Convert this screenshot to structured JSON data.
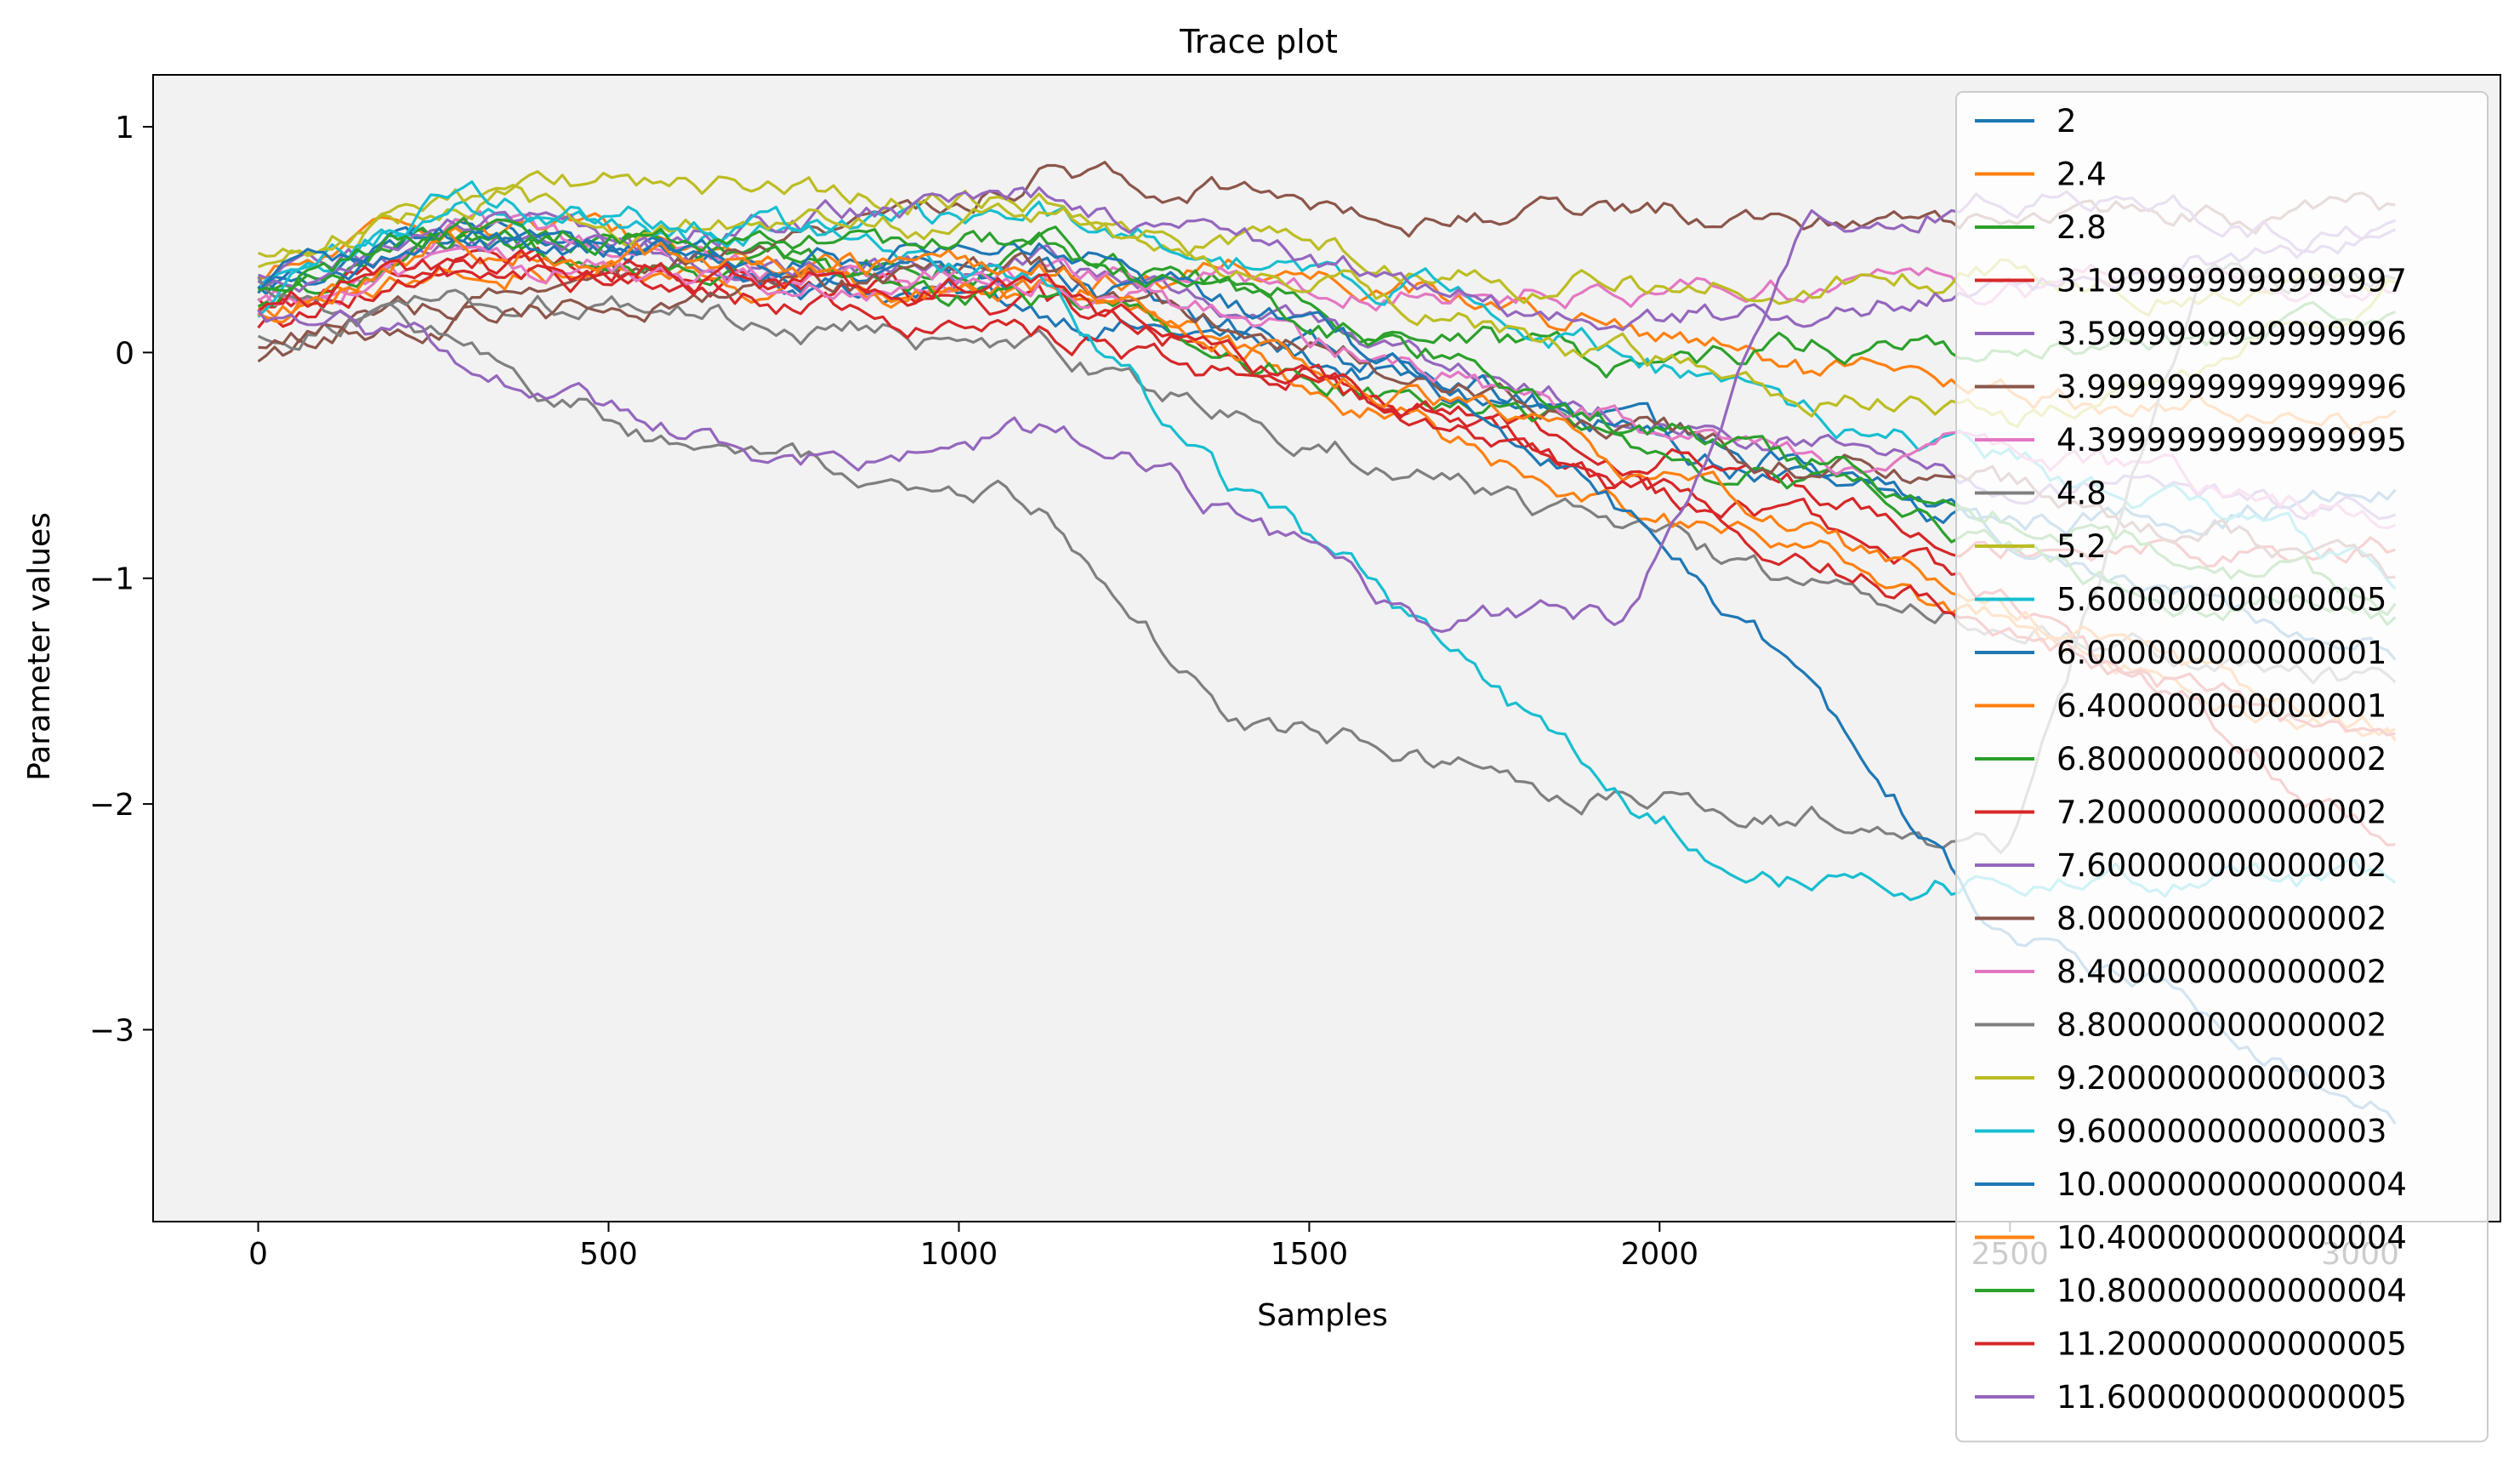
{
  "chart_data": {
    "type": "line",
    "title": "Trace plot",
    "xlabel": "Samples",
    "ylabel": "Parameter values",
    "xlim": [
      -150,
      3200
    ],
    "ylim": [
      -3.85,
      1.23
    ],
    "xticks": [
      0,
      500,
      1000,
      1500,
      2000,
      2500,
      3000
    ],
    "xtick_labels": [
      "0",
      "500",
      "1000",
      "1500",
      "2000",
      "2500",
      "3000"
    ],
    "yticks": [
      1,
      0,
      -1,
      -2,
      -3
    ],
    "ytick_labels": [
      "1",
      "0",
      "−1",
      "−2",
      "−3"
    ],
    "grid": false,
    "legend_position": "right",
    "background": "#f2f2f2",
    "series": [
      {
        "name": "2",
        "color": "#1f77b4",
        "end_x": 3050,
        "values": [
          0.3,
          0.55,
          0.45,
          0.3,
          0.2,
          0.05,
          -0.15,
          -0.35,
          -0.6,
          -0.75,
          -0.7,
          -0.65
        ]
      },
      {
        "name": "2.4",
        "color": "#ff7f0e",
        "end_x": 3050,
        "values": [
          0.3,
          0.6,
          0.5,
          0.35,
          0.25,
          0.4,
          0.3,
          0.1,
          -0.1,
          -0.2,
          -0.25,
          -0.3
        ]
      },
      {
        "name": "2.8",
        "color": "#2ca02c",
        "end_x": 3050,
        "values": [
          0.25,
          0.5,
          0.45,
          0.4,
          0.45,
          0.3,
          0.1,
          -0.05,
          0.05,
          0.0,
          0.05,
          0.1
        ]
      },
      {
        "name": "3.1999999999999997",
        "color": "#d62728",
        "end_x": 3050,
        "values": [
          0.2,
          0.45,
          0.4,
          0.3,
          0.2,
          0.0,
          -0.2,
          -0.4,
          -0.6,
          -0.8,
          -0.85,
          -0.9
        ]
      },
      {
        "name": "3.5999999999999996",
        "color": "#9467bd",
        "end_x": 3050,
        "values": [
          0.3,
          0.5,
          0.45,
          0.35,
          0.4,
          0.2,
          0.0,
          -0.25,
          -0.4,
          -0.6,
          -0.65,
          -0.7
        ]
      },
      {
        "name": "3.9999999999999996",
        "color": "#8c564b",
        "end_x": 3050,
        "values": [
          0.0,
          0.2,
          0.3,
          0.5,
          0.8,
          0.75,
          0.62,
          0.62,
          0.62,
          0.62,
          0.62,
          0.62
        ]
      },
      {
        "name": "4.3999999999999995",
        "color": "#e377c2",
        "end_x": 3050,
        "values": [
          0.2,
          0.5,
          0.4,
          0.35,
          0.3,
          0.3,
          0.3,
          0.3,
          0.3,
          0.3,
          0.3,
          0.3
        ]
      },
      {
        "name": "4.8",
        "color": "#7f7f7f",
        "end_x": 3050,
        "values": [
          0.1,
          0.25,
          0.2,
          0.1,
          0.0,
          -0.25,
          -0.5,
          -0.8,
          -1.05,
          -1.2,
          -1.35,
          -1.5
        ]
      },
      {
        "name": "5.2",
        "color": "#bcbd22",
        "end_x": 3050,
        "values": [
          0.4,
          0.7,
          0.75,
          0.7,
          0.65,
          0.5,
          0.4,
          0.3,
          0.3,
          0.35,
          0.3,
          0.35
        ]
      },
      {
        "name": "5.600000000000005",
        "color": "#17becf",
        "end_x": 3050,
        "values": [
          0.3,
          0.6,
          0.55,
          0.5,
          0.6,
          0.4,
          0.3,
          0.0,
          -0.3,
          -0.5,
          -0.7,
          -1.0
        ]
      },
      {
        "name": "6.000000000000001",
        "color": "#1f77b4",
        "end_x": 3050,
        "values": [
          0.3,
          0.5,
          0.4,
          0.3,
          0.35,
          0.1,
          -0.1,
          -0.3,
          -0.5,
          -0.8,
          -1.1,
          -1.3
        ]
      },
      {
        "name": "6.400000000000001",
        "color": "#ff7f0e",
        "end_x": 3050,
        "values": [
          0.2,
          0.4,
          0.35,
          0.25,
          0.3,
          0.0,
          -0.3,
          -0.7,
          -0.9,
          -1.2,
          -1.5,
          -1.8
        ]
      },
      {
        "name": "6.800000000000002",
        "color": "#2ca02c",
        "end_x": 3050,
        "values": [
          0.2,
          0.45,
          0.4,
          0.3,
          0.25,
          0.0,
          -0.2,
          -0.4,
          -0.6,
          -0.9,
          -1.1,
          -1.2
        ]
      },
      {
        "name": "7.200000000000002",
        "color": "#d62728",
        "end_x": 3050,
        "values": [
          0.1,
          0.35,
          0.3,
          0.2,
          0.1,
          -0.1,
          -0.3,
          -0.6,
          -0.8,
          -1.1,
          -1.6,
          -2.2
        ]
      },
      {
        "name": "7.600000000000002",
        "color": "#9467bd",
        "end_x": 3050,
        "values": [
          0.3,
          0.55,
          0.5,
          0.6,
          0.7,
          0.5,
          0.3,
          0.1,
          0.2,
          0.3,
          0.4,
          0.5
        ]
      },
      {
        "name": "8.000000000000002",
        "color": "#8c564b",
        "end_x": 3050,
        "values": [
          0.0,
          0.15,
          0.2,
          0.3,
          0.35,
          0.1,
          -0.1,
          -0.3,
          -0.5,
          -0.6,
          -0.8,
          -1.0
        ]
      },
      {
        "name": "8.400000000000002",
        "color": "#e377c2",
        "end_x": 3050,
        "values": [
          0.2,
          0.4,
          0.35,
          0.3,
          0.35,
          0.15,
          -0.1,
          -0.3,
          -0.5,
          -0.4,
          -0.6,
          -0.7
        ]
      },
      {
        "name": "8.800000000000002",
        "color": "#7f7f7f",
        "end_x": 3050,
        "values": [
          0.3,
          0.1,
          -0.35,
          -0.55,
          -0.7,
          -1.6,
          -1.8,
          -1.95,
          -2.05,
          -2.2,
          0.3,
          0.3
        ]
      },
      {
        "name": "9.200000000000003",
        "color": "#bcbd22",
        "end_x": 3050,
        "values": [
          0.4,
          0.65,
          0.6,
          0.55,
          0.6,
          0.4,
          0.2,
          0.0,
          -0.2,
          -0.3,
          -0.1,
          0.3
        ]
      },
      {
        "name": "9.600000000000003",
        "color": "#17becf",
        "end_x": 3050,
        "values": [
          0.2,
          0.7,
          0.6,
          0.5,
          0.35,
          -0.6,
          -1.2,
          -2.0,
          -2.35,
          -2.35,
          -2.35,
          -2.35
        ]
      },
      {
        "name": "10.000000000000004",
        "color": "#1f77b4",
        "end_x": 3050,
        "values": [
          0.3,
          0.5,
          0.45,
          0.4,
          0.5,
          0.2,
          -0.1,
          -0.7,
          -1.5,
          -2.6,
          -2.9,
          -3.4
        ]
      },
      {
        "name": "10.400000000000004",
        "color": "#ff7f0e",
        "end_x": 3050,
        "values": [
          0.2,
          0.5,
          0.45,
          0.4,
          0.4,
          0.1,
          -0.2,
          -0.5,
          -0.8,
          -1.1,
          -1.4,
          -1.7
        ]
      },
      {
        "name": "10.800000000000004",
        "color": "#2ca02c",
        "end_x": 3050,
        "values": [
          0.3,
          0.55,
          0.5,
          0.45,
          0.5,
          0.25,
          0.0,
          -0.3,
          -0.5,
          -0.7,
          -0.9,
          -1.1
        ]
      },
      {
        "name": "11.200000000000005",
        "color": "#d62728",
        "end_x": 3050,
        "values": [
          0.2,
          0.4,
          0.35,
          0.3,
          0.3,
          0.0,
          -0.3,
          -0.6,
          -0.9,
          -1.2,
          -1.5,
          -1.8
        ]
      },
      {
        "name": "11.600000000000005",
        "color": "#9467bd",
        "end_x": 3050,
        "values": [
          0.2,
          0.0,
          -0.3,
          -0.5,
          -0.35,
          -0.7,
          -1.2,
          -1.22,
          0.6,
          0.7,
          0.6,
          0.5
        ]
      }
    ]
  }
}
